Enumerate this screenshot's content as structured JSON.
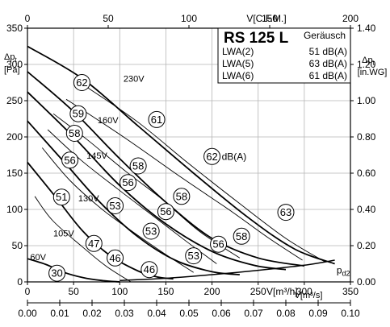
{
  "chart_data": {
    "type": "line",
    "title": "RS 125 L",
    "info_box": {
      "header": "Geräusch",
      "rows": [
        {
          "label": "LWA(2)",
          "value": "51 dB(A)"
        },
        {
          "label": "LWA(5)",
          "value": "63 dB(A)"
        },
        {
          "label": "LWA(6)",
          "value": "61 dB(A)"
        }
      ]
    },
    "axes": {
      "x_bottom_primary": {
        "label": "V[m³/h]",
        "range": [
          0,
          350
        ],
        "ticks": [
          0,
          50,
          100,
          150,
          200,
          250,
          300,
          350
        ]
      },
      "x_bottom_secondary": {
        "label": "V[m³/s]",
        "range": [
          0,
          0.1
        ],
        "tick_labels": [
          "0.00",
          "0.01",
          "0.02",
          "0.03",
          "0.04",
          "0.05",
          "0.06",
          "0.07",
          "0.08",
          "0.09",
          "0.10"
        ]
      },
      "x_top": {
        "label": "V[C.F.M.]",
        "range": [
          0,
          200
        ],
        "ticks": [
          0,
          50,
          100,
          150,
          200
        ]
      },
      "y_left": {
        "label_top": "Δpt",
        "label_unit": "[Pa]",
        "range": [
          0,
          350
        ],
        "ticks": [
          0,
          50,
          100,
          150,
          200,
          250,
          300,
          350
        ]
      },
      "y_right": {
        "label_top": "Δpt",
        "label_unit": "[in.WG]",
        "range": [
          0,
          1.4
        ],
        "tick_labels": [
          "0.00",
          "0.20",
          "0.40",
          "0.60",
          "0.80",
          "1.00",
          "1.20",
          "1.40"
        ]
      }
    },
    "grid": true,
    "series": [
      {
        "name": "230V",
        "x": [
          0,
          60,
          120,
          180,
          240,
          290,
          333
        ],
        "y": [
          325,
          280,
          215,
          150,
          88,
          45,
          25
        ]
      },
      {
        "name": "160V",
        "x": [
          0,
          50,
          100,
          150,
          200,
          250,
          300
        ],
        "y": [
          290,
          235,
          170,
          110,
          60,
          33,
          22
        ]
      },
      {
        "name": "145V",
        "x": [
          0,
          50,
          100,
          150,
          200,
          245,
          280
        ],
        "y": [
          262,
          200,
          133,
          80,
          42,
          23,
          17
        ]
      },
      {
        "name": "130V",
        "x": [
          0,
          40,
          80,
          120,
          160,
          200,
          230
        ],
        "y": [
          222,
          165,
          108,
          62,
          30,
          14,
          10
        ]
      },
      {
        "name": "105V",
        "x": [
          0,
          30,
          60,
          90,
          120,
          140,
          158
        ],
        "y": [
          165,
          118,
          70,
          36,
          15,
          7,
          4
        ]
      },
      {
        "name": "60V",
        "x": [
          0,
          20,
          40,
          60,
          80,
          100
        ],
        "y": [
          32,
          24,
          13,
          6,
          2,
          0
        ]
      }
    ],
    "system_curve": {
      "name": "pd2",
      "x": [
        100,
        150,
        200,
        250,
        300,
        333
      ],
      "y": [
        2,
        5,
        10,
        16,
        23,
        30
      ]
    },
    "iso_curves": [
      {
        "x": [
          57,
          118,
          173,
          228,
          280,
          322
        ],
        "y": [
          275,
          222,
          165,
          110,
          60,
          28
        ]
      },
      {
        "x": [
          42,
          104,
          168,
          218,
          262,
          298
        ],
        "y": [
          252,
          200,
          143,
          100,
          60,
          30
        ]
      },
      {
        "x": [
          28,
          64,
          107,
          144,
          186,
          230
        ],
        "y": [
          232,
          197,
          152,
          116,
          70,
          33
        ]
      },
      {
        "x": [
          22,
          58,
          98,
          132,
          170,
          205
        ],
        "y": [
          210,
          168,
          128,
          95,
          58,
          25
        ]
      },
      {
        "x": [
          16,
          46,
          81,
          111,
          145,
          180
        ],
        "y": [
          185,
          140,
          100,
          72,
          42,
          13
        ]
      },
      {
        "x": [
          8,
          27,
          58,
          85,
          112
        ],
        "y": [
          118,
          85,
          50,
          22,
          0
        ]
      }
    ],
    "sound_markers": [
      {
        "label": "62",
        "x": 59,
        "y": 275
      },
      {
        "label": "61",
        "x": 140,
        "y": 224
      },
      {
        "label": "62",
        "x": 200,
        "y": 173,
        "suffix": "dB(A)"
      },
      {
        "label": "63",
        "x": 280,
        "y": 96
      },
      {
        "label": "59",
        "x": 55,
        "y": 232
      },
      {
        "label": "58",
        "x": 51,
        "y": 205
      },
      {
        "label": "58",
        "x": 120,
        "y": 160
      },
      {
        "label": "58",
        "x": 167,
        "y": 118
      },
      {
        "label": "58",
        "x": 232,
        "y": 63
      },
      {
        "label": "56",
        "x": 46,
        "y": 168
      },
      {
        "label": "56",
        "x": 109,
        "y": 137
      },
      {
        "label": "56",
        "x": 150,
        "y": 97
      },
      {
        "label": "56",
        "x": 207,
        "y": 52
      },
      {
        "label": "53",
        "x": 95,
        "y": 105
      },
      {
        "label": "53",
        "x": 134,
        "y": 70
      },
      {
        "label": "53",
        "x": 180,
        "y": 36
      },
      {
        "label": "51",
        "x": 37,
        "y": 117
      },
      {
        "label": "47",
        "x": 72,
        "y": 53
      },
      {
        "label": "46",
        "x": 95,
        "y": 33
      },
      {
        "label": "46",
        "x": 132,
        "y": 17
      },
      {
        "label": "30",
        "x": 32,
        "y": 12
      }
    ],
    "voltage_labels": [
      {
        "label": "230V",
        "x": 104,
        "y": 276
      },
      {
        "label": "160V",
        "x": 76,
        "y": 219
      },
      {
        "label": "145V",
        "x": 64,
        "y": 170
      },
      {
        "label": "130V",
        "x": 55,
        "y": 111
      },
      {
        "label": "105V",
        "x": 28,
        "y": 63
      },
      {
        "label": "60V",
        "x": 3,
        "y": 30
      }
    ]
  }
}
